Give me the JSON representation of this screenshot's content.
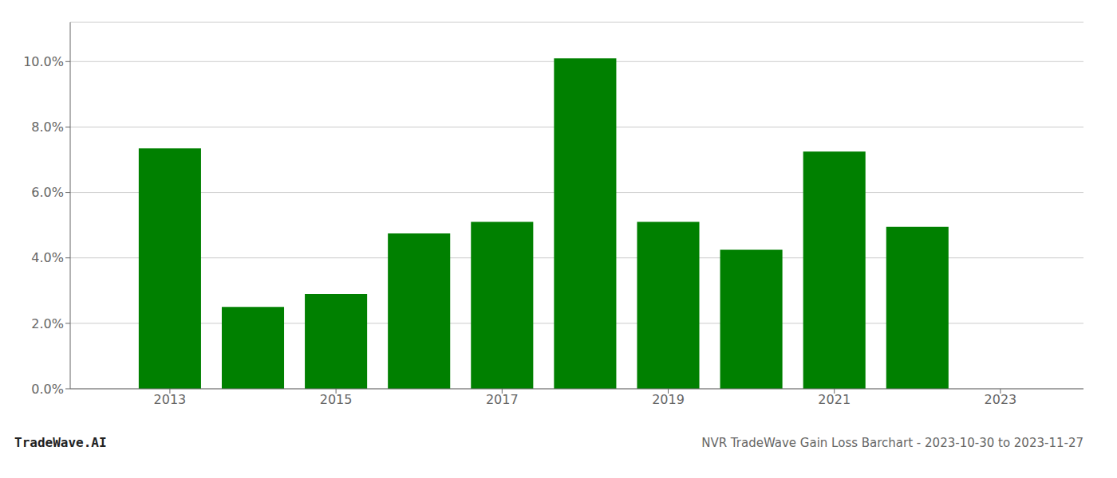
{
  "chart_data": {
    "type": "bar",
    "title": "NVR TradeWave Gain Loss Barchart - 2023-10-30 to 2023-11-27",
    "annotations": [
      "TradeWave.AI"
    ],
    "x": [
      2013,
      2014,
      2015,
      2016,
      2017,
      2018,
      2019,
      2020,
      2021,
      2022
    ],
    "values": [
      0.0735,
      0.025,
      0.029,
      0.0475,
      0.051,
      0.101,
      0.051,
      0.0425,
      0.0725,
      0.0495
    ],
    "color": "#008000",
    "xlim": [
      2011.8,
      2024.0
    ],
    "xticks": [
      2013,
      2015,
      2017,
      2019,
      2021,
      2023
    ],
    "ylim": [
      0,
      0.112
    ],
    "yticks": [
      {
        "value": 0.0,
        "label": "0.0%"
      },
      {
        "value": 0.02,
        "label": "2.0%"
      },
      {
        "value": 0.04,
        "label": "4.0%"
      },
      {
        "value": 0.06,
        "label": "6.0%"
      },
      {
        "value": 0.08,
        "label": "8.0%"
      },
      {
        "value": 0.1,
        "label": "10.0%"
      }
    ],
    "grid": true
  }
}
